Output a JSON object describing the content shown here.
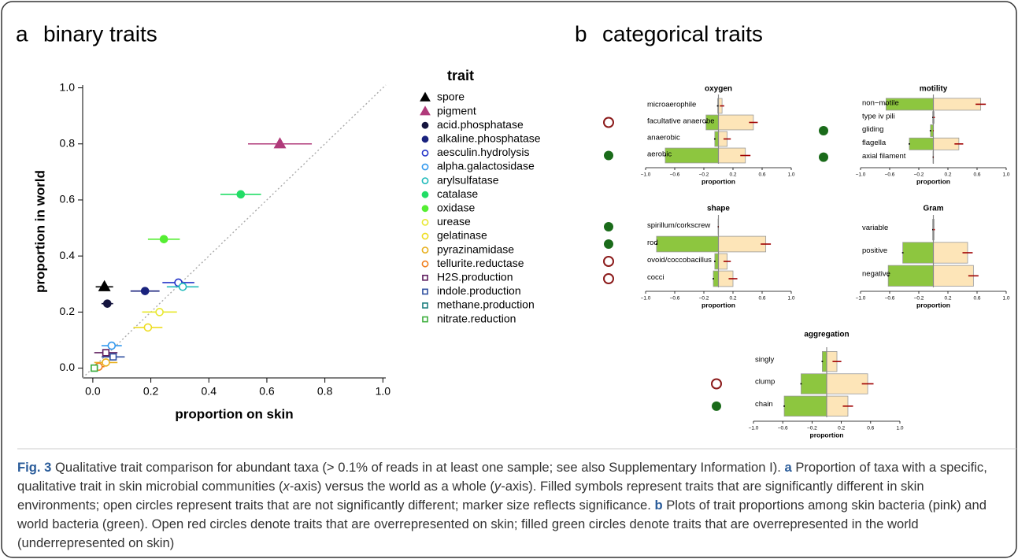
{
  "panel_a_label": "a",
  "panel_a_title": "binary traits",
  "panel_b_label": "b",
  "panel_b_title": "categorical traits",
  "chart_data": [
    {
      "type": "scatter",
      "xlabel": "proportion on skin",
      "ylabel": "proportion in world",
      "legend_title": "trait",
      "xlim": [
        -0.035,
        1.01
      ],
      "ylim": [
        -0.035,
        1.01
      ],
      "xticks": [
        {
          "value": 0,
          "label": "0.0"
        },
        0.2,
        0.4,
        0.6,
        0.8,
        {
          "value": 1,
          "label": "1.0"
        }
      ],
      "yticks": [
        {
          "value": 0,
          "label": "0.0"
        },
        0.2,
        0.4,
        0.6,
        0.8,
        {
          "value": 1,
          "label": "1.0"
        }
      ],
      "series": [
        {
          "name": "spore",
          "color": "#000000",
          "marker": "triangle",
          "filled": true,
          "x": [
            0.04
          ],
          "values": [
            0.29
          ],
          "xerr": [
            0.03
          ]
        },
        {
          "name": "pigment",
          "color": "#b03a7a",
          "marker": "triangle",
          "filled": true,
          "x": [
            0.645
          ],
          "values": [
            0.8
          ],
          "xerr": [
            0.11
          ]
        },
        {
          "name": "acid.phosphatase",
          "color": "#15153f",
          "marker": "circle",
          "filled": true,
          "x": [
            0.05
          ],
          "values": [
            0.23
          ],
          "xerr": [
            0.02
          ]
        },
        {
          "name": "alkaline.phosphatase",
          "color": "#1a237e",
          "marker": "circle",
          "filled": true,
          "x": [
            0.18
          ],
          "values": [
            0.275
          ],
          "xerr": [
            0.05
          ]
        },
        {
          "name": "aesculin.hydrolysis",
          "color": "#2535c8",
          "marker": "circle",
          "filled": false,
          "x": [
            0.295
          ],
          "values": [
            0.305
          ],
          "xerr": [
            0.055
          ]
        },
        {
          "name": "alpha.galactosidase",
          "color": "#3399ee",
          "marker": "circle",
          "filled": false,
          "x": [
            0.065
          ],
          "values": [
            0.08
          ],
          "xerr": [
            0.035
          ]
        },
        {
          "name": "arylsulfatase",
          "color": "#22bbbb",
          "marker": "circle",
          "filled": false,
          "x": [
            0.31
          ],
          "values": [
            0.29
          ],
          "xerr": [
            0.055
          ]
        },
        {
          "name": "catalase",
          "color": "#22dd66",
          "marker": "circle",
          "filled": true,
          "x": [
            0.51
          ],
          "values": [
            0.62
          ],
          "xerr": [
            0.07
          ]
        },
        {
          "name": "oxidase",
          "color": "#55ee33",
          "marker": "circle",
          "filled": true,
          "x": [
            0.245
          ],
          "values": [
            0.46
          ],
          "xerr": [
            0.055
          ]
        },
        {
          "name": "urease",
          "color": "#e8e830",
          "marker": "circle",
          "filled": false,
          "x": [
            0.23
          ],
          "values": [
            0.2
          ],
          "xerr": [
            0.06
          ]
        },
        {
          "name": "gelatinase",
          "color": "#eedd22",
          "marker": "circle",
          "filled": false,
          "x": [
            0.19
          ],
          "values": [
            0.145
          ],
          "xerr": [
            0.05
          ]
        },
        {
          "name": "pyrazinamidase",
          "color": "#e8b020",
          "marker": "circle",
          "filled": false,
          "x": [
            0.045
          ],
          "values": [
            0.02
          ],
          "xerr": [
            0.04
          ]
        },
        {
          "name": "tellurite.reductase",
          "color": "#f08020",
          "marker": "circle",
          "filled": false,
          "x": [
            0.02
          ],
          "values": [
            0.005
          ],
          "xerr": [
            0.02
          ]
        },
        {
          "name": "H2S.production",
          "color": "#602060",
          "marker": "square",
          "filled": false,
          "x": [
            0.045
          ],
          "values": [
            0.055
          ],
          "xerr": [
            0.04
          ]
        },
        {
          "name": "indole.production",
          "color": "#3050a0",
          "marker": "square",
          "filled": false,
          "x": [
            0.07
          ],
          "values": [
            0.04
          ],
          "xerr": [
            0.04
          ]
        },
        {
          "name": "methane.production",
          "color": "#208080",
          "marker": "square",
          "filled": false,
          "x": [
            0.005
          ],
          "values": [
            0.0
          ],
          "xerr": [
            0.01
          ]
        },
        {
          "name": "nitrate.reduction",
          "color": "#40b040",
          "marker": "square",
          "filled": false,
          "x": [
            0.005
          ],
          "values": [
            0.0
          ],
          "xerr": [
            0.01
          ]
        }
      ]
    },
    {
      "type": "bar",
      "title": "oxygen",
      "xlabel": "proportion",
      "xlim": [
        -1,
        1
      ],
      "xticks": [
        {
          "value": -1,
          "label": "−1.0"
        },
        {
          "value": -0.6,
          "label": "−0.6"
        },
        {
          "value": -0.2,
          "label": "−0.2"
        },
        0.2,
        0.6,
        {
          "value": 1,
          "label": "1.0"
        }
      ],
      "categories": [
        "microaerophile",
        "facultative anaerobe",
        "anaerobic",
        "aerobic"
      ],
      "markers": [
        null,
        "open",
        null,
        "filled"
      ],
      "open_color": "#8b1a1a",
      "filled_color": "#1a6b1a",
      "series": [
        {
          "color": "#fde5b8",
          "error_color": "#a00000",
          "values": [
            0.05,
            0.48,
            0.12,
            0.37
          ],
          "errors": [
            0.03,
            0.06,
            0.05,
            0.07
          ]
        },
        {
          "color": "#8dc63f",
          "error_color": "#000000",
          "values": [
            -0.01,
            -0.17,
            -0.05,
            -0.73
          ],
          "errors": [
            0.01,
            0.01,
            0.01,
            0.01
          ]
        }
      ]
    },
    {
      "type": "bar",
      "title": "motility",
      "xlabel": "proportion",
      "xlim": [
        -1,
        1
      ],
      "xticks": [
        {
          "value": -1,
          "label": "−1.0"
        },
        {
          "value": -0.6,
          "label": "−0.6"
        },
        {
          "value": -0.2,
          "label": "−0.2"
        },
        0.2,
        0.6,
        {
          "value": 1,
          "label": "1.0"
        }
      ],
      "categories": [
        "non−motile",
        "type iv pili",
        "gliding",
        "flagella",
        "axial filament"
      ],
      "markers": [
        null,
        null,
        "filled",
        null,
        "filled"
      ],
      "open_color": "#8b1a1a",
      "filled_color": "#1a6b1a",
      "series": [
        {
          "color": "#fde5b8",
          "error_color": "#a00000",
          "values": [
            0.65,
            0.01,
            0.0,
            0.35,
            0.0
          ],
          "errors": [
            0.07,
            0.01,
            0.005,
            0.06,
            0.005
          ]
        },
        {
          "color": "#8dc63f",
          "error_color": "#000000",
          "values": [
            -0.65,
            -0.01,
            -0.04,
            -0.33,
            -0.005
          ],
          "errors": [
            0.01,
            0.005,
            0.01,
            0.01,
            0.005
          ]
        }
      ]
    },
    {
      "type": "bar",
      "title": "shape",
      "xlabel": "proportion",
      "xlim": [
        -1,
        1
      ],
      "xticks": [
        {
          "value": -1,
          "label": "−1.0"
        },
        {
          "value": -0.6,
          "label": "−0.6"
        },
        {
          "value": -0.2,
          "label": "−0.2"
        },
        0.2,
        0.6,
        {
          "value": 1,
          "label": "1.0"
        }
      ],
      "categories": [
        "spirillum/corkscrew",
        "rod",
        "ovoid/coccobacillus",
        "cocci"
      ],
      "markers": [
        "filled",
        "filled",
        "open",
        "open"
      ],
      "open_color": "#8b1a1a",
      "filled_color": "#1a6b1a",
      "series": [
        {
          "color": "#fde5b8",
          "error_color": "#a00000",
          "values": [
            0.0,
            0.65,
            0.12,
            0.2
          ],
          "errors": [
            0.005,
            0.07,
            0.05,
            0.06
          ]
        },
        {
          "color": "#8dc63f",
          "error_color": "#000000",
          "values": [
            -0.005,
            -0.85,
            -0.05,
            -0.07
          ],
          "errors": [
            0.005,
            0.01,
            0.01,
            0.01
          ]
        }
      ]
    },
    {
      "type": "bar",
      "title": "Gram",
      "xlabel": "proportion",
      "xlim": [
        -1,
        1
      ],
      "xticks": [
        {
          "value": -1,
          "label": "−1.0"
        },
        {
          "value": -0.6,
          "label": "−0.6"
        },
        {
          "value": -0.2,
          "label": "−0.2"
        },
        0.2,
        0.6,
        {
          "value": 1,
          "label": "1.0"
        }
      ],
      "categories": [
        "variable",
        "positive",
        "negative"
      ],
      "markers": [
        null,
        null,
        null
      ],
      "open_color": "#8b1a1a",
      "filled_color": "#1a6b1a",
      "series": [
        {
          "color": "#fde5b8",
          "error_color": "#a00000",
          "values": [
            0.01,
            0.47,
            0.55
          ],
          "errors": [
            0.01,
            0.07,
            0.07
          ]
        },
        {
          "color": "#8dc63f",
          "error_color": "#000000",
          "values": [
            -0.01,
            -0.42,
            -0.62
          ],
          "errors": [
            0.005,
            0.01,
            0.01
          ]
        }
      ]
    },
    {
      "type": "bar",
      "title": "aggregation",
      "xlabel": "proportion",
      "xlim": [
        -1,
        1
      ],
      "xticks": [
        {
          "value": -1,
          "label": "−1.0"
        },
        {
          "value": -0.6,
          "label": "−0.6"
        },
        {
          "value": -0.2,
          "label": "−0.2"
        },
        0.2,
        0.6,
        {
          "value": 1,
          "label": "1.0"
        }
      ],
      "categories": [
        "singly",
        "clump",
        "chain"
      ],
      "markers": [
        null,
        "open",
        "filled"
      ],
      "open_color": "#8b1a1a",
      "filled_color": "#1a6b1a",
      "series": [
        {
          "color": "#fde5b8",
          "error_color": "#a00000",
          "values": [
            0.14,
            0.56,
            0.29
          ],
          "errors": [
            0.06,
            0.08,
            0.07
          ]
        },
        {
          "color": "#8dc63f",
          "error_color": "#000000",
          "values": [
            -0.06,
            -0.35,
            -0.58
          ],
          "errors": [
            0.01,
            0.01,
            0.01
          ]
        }
      ]
    }
  ],
  "caption": [
    {
      "text": "Fig. 3",
      "bold": true
    },
    {
      "text": " Qualitative trait comparison for abundant taxa (> 0.1% of reads in at least one sample; see also Supplementary Information I). "
    },
    {
      "text": "a",
      "bold": true
    },
    {
      "text": " Proportion of taxa with a specific, qualitative trait in skin microbial communities ("
    },
    {
      "text": "x",
      "italic": true
    },
    {
      "text": "-axis) versus the world as a whole ("
    },
    {
      "text": "y",
      "italic": true
    },
    {
      "text": "-axis). Filled symbols represent traits that are significantly different in skin environments; open circles represent traits that are not significantly different; marker size reflects significance. "
    },
    {
      "text": "b",
      "bold": true
    },
    {
      "text": " Plots of trait proportions among skin bacteria (pink) and world bacteria (green). Open red circles denote traits that are overrepresented on skin; filled green circles denote traits that are overrepresented in the world (underrepresented on skin)"
    }
  ]
}
